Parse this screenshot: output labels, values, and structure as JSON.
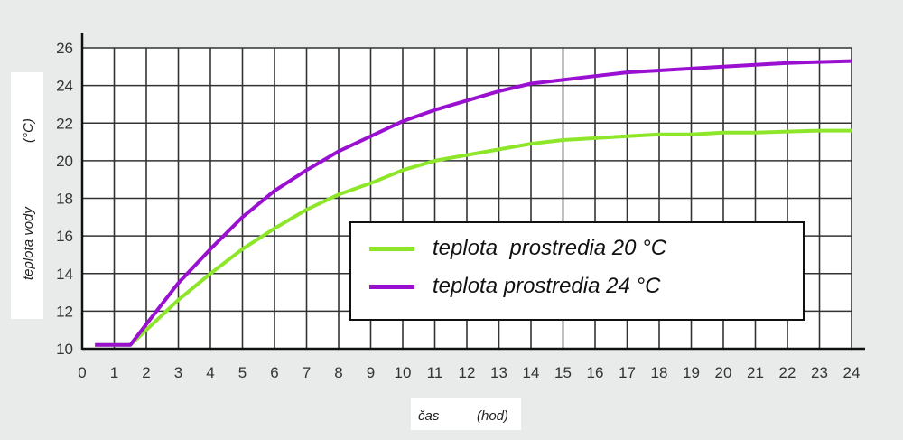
{
  "chart_data": {
    "type": "line",
    "xlabel": "čas",
    "xunit": "(hod)",
    "ylabel": "teplota vody",
    "yunit": "(°C)",
    "xlim": [
      0,
      24
    ],
    "ylim": [
      10,
      26
    ],
    "xticks": [
      0,
      1,
      2,
      3,
      4,
      5,
      6,
      7,
      8,
      9,
      10,
      11,
      12,
      13,
      14,
      15,
      16,
      17,
      18,
      19,
      20,
      21,
      22,
      23,
      24
    ],
    "yticks": [
      10,
      12,
      14,
      16,
      18,
      20,
      22,
      24,
      26
    ],
    "grid": true,
    "legend_placement": "center-right",
    "series": [
      {
        "name": "teplota  prostredia 20 °C",
        "color": "#8ee62a",
        "x": [
          0.4,
          1.5,
          2,
          3,
          4,
          5,
          6,
          7,
          8,
          9,
          10,
          11,
          12,
          13,
          14,
          15,
          16,
          17,
          18,
          19,
          20,
          21,
          22,
          23,
          24
        ],
        "y": [
          10.2,
          10.2,
          11,
          12.6,
          14,
          15.3,
          16.4,
          17.4,
          18.2,
          18.8,
          19.5,
          20,
          20.3,
          20.6,
          20.9,
          21.1,
          21.2,
          21.3,
          21.4,
          21.4,
          21.5,
          21.5,
          21.55,
          21.6,
          21.6
        ]
      },
      {
        "name": "teplota prostredia 24 °C",
        "color": "#9a10d0",
        "x": [
          0.4,
          1.5,
          2,
          3,
          4,
          5,
          6,
          7,
          8,
          9,
          10,
          11,
          12,
          13,
          14,
          15,
          16,
          17,
          18,
          19,
          20,
          21,
          22,
          23,
          24
        ],
        "y": [
          10.2,
          10.2,
          11.3,
          13.5,
          15.3,
          17,
          18.4,
          19.5,
          20.5,
          21.3,
          22.1,
          22.7,
          23.2,
          23.7,
          24.1,
          24.3,
          24.5,
          24.7,
          24.8,
          24.9,
          25,
          25.1,
          25.2,
          25.25,
          25.3
        ]
      }
    ]
  }
}
